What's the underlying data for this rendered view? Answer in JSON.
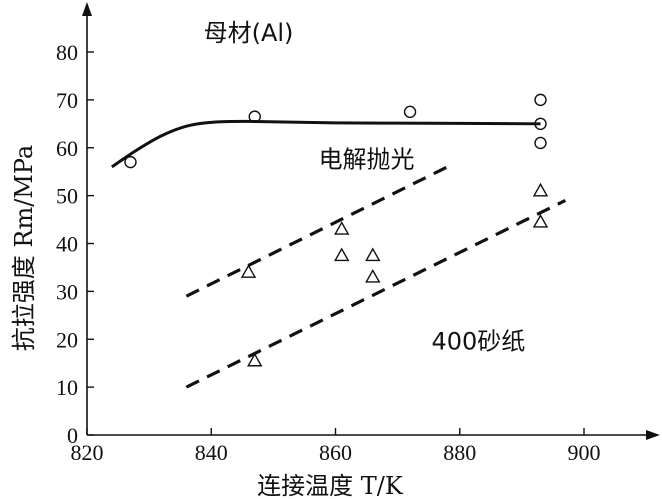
{
  "chart_data": {
    "type": "scatter",
    "xlabel": "连接温度 T/K",
    "ylabel": "抗拉强度 Rm/MPa",
    "xlim": [
      820,
      913
    ],
    "ylim": [
      0,
      87
    ],
    "x_ticks": [
      820,
      840,
      860,
      880,
      900
    ],
    "y_ticks": [
      0,
      10,
      20,
      30,
      40,
      50,
      60,
      70,
      80
    ],
    "grid": false,
    "series": [
      {
        "name": "电解抛光",
        "marker": "circle",
        "points": [
          [
            827,
            57
          ],
          [
            847,
            66.5
          ],
          [
            872,
            67.5
          ],
          [
            893,
            70
          ],
          [
            893,
            65
          ],
          [
            893,
            61
          ]
        ]
      },
      {
        "name": "400砂纸",
        "marker": "triangle",
        "points": [
          [
            846,
            34
          ],
          [
            847,
            15.5
          ],
          [
            861,
            43
          ],
          [
            861,
            37.5
          ],
          [
            866,
            37.5
          ],
          [
            866,
            33
          ],
          [
            893,
            51
          ],
          [
            893,
            44.5
          ]
        ]
      }
    ],
    "reference_lines": [
      {
        "name": "母材(Al)",
        "style": "solid",
        "points": [
          [
            824,
            56
          ],
          [
            828,
            59.5
          ],
          [
            832,
            62.5
          ],
          [
            836,
            64.5
          ],
          [
            840,
            65.3
          ],
          [
            846,
            65.5
          ],
          [
            860,
            65.2
          ],
          [
            880,
            65.1
          ],
          [
            893,
            65
          ]
        ]
      },
      {
        "style": "dashed",
        "points": [
          [
            836,
            29
          ],
          [
            878,
            56
          ]
        ]
      },
      {
        "style": "dashed",
        "points": [
          [
            836,
            10
          ],
          [
            897,
            49
          ]
        ]
      }
    ],
    "annotations": [
      {
        "text": "母材(Al)",
        "x": 846,
        "y": 84
      },
      {
        "text": "电解抛光",
        "x": 865,
        "y": 57.5
      },
      {
        "text": "400砂纸",
        "x": 883,
        "y": 19.5
      }
    ]
  }
}
